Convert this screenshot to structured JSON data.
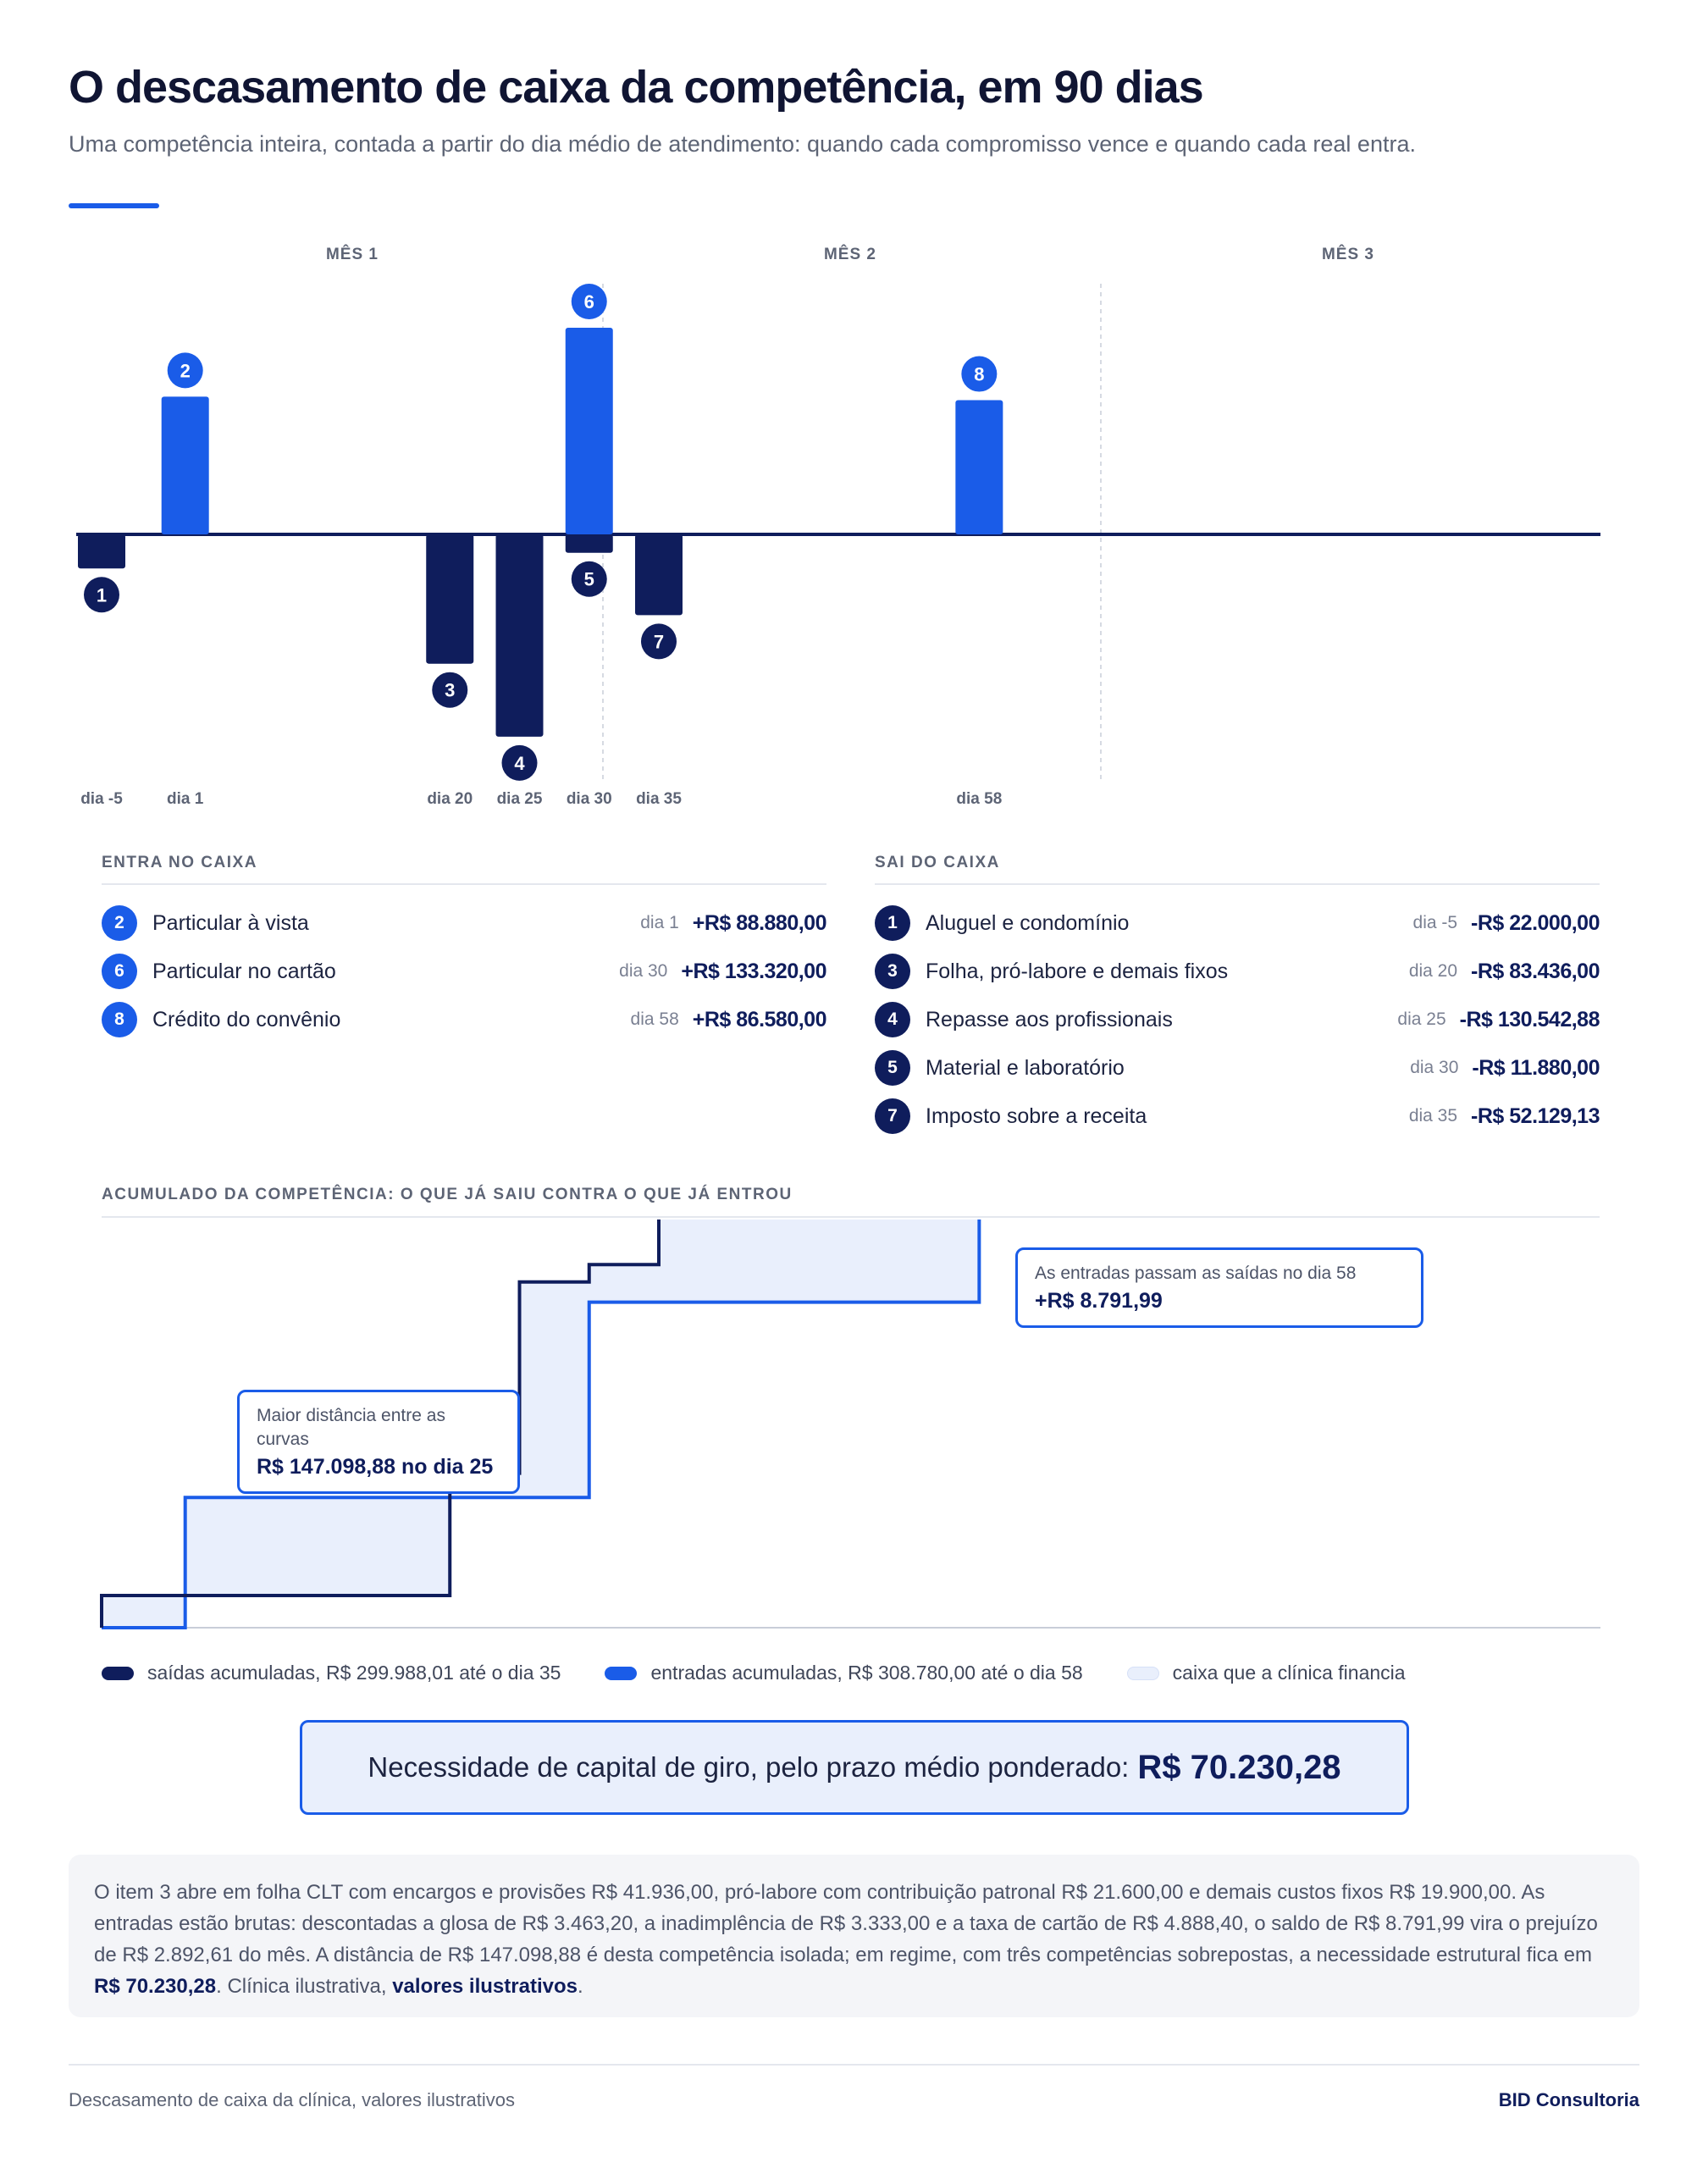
{
  "header": {
    "title": "O descasamento de caixa da competência, em 90 dias",
    "subtitle": "Uma competência inteira, contada a partir do dia médio de atendimento: quando cada compromisso vence e quando cada real entra."
  },
  "colors": {
    "inflow": "#1a5ce8",
    "outflow": "#0f1d5c",
    "financed": "#e9effc",
    "axis": "#0f1d5c"
  },
  "chart_data": [
    {
      "type": "bar",
      "months": [
        "MÊS 1",
        "MÊS 2",
        "MÊS 3"
      ],
      "events": [
        {
          "n": "1",
          "kind": "out",
          "day": -5,
          "value": -22000.0,
          "day_label": "dia -5"
        },
        {
          "n": "2",
          "kind": "in",
          "day": 1,
          "value": 88880.0,
          "day_label": "dia 1"
        },
        {
          "n": "3",
          "kind": "out",
          "day": 20,
          "value": -83436.0,
          "day_label": "dia 20"
        },
        {
          "n": "4",
          "kind": "out",
          "day": 25,
          "value": -130542.88,
          "day_label": "dia 25"
        },
        {
          "n": "5",
          "kind": "out",
          "day": 30,
          "value": -11880.0,
          "day_label": ""
        },
        {
          "n": "6",
          "kind": "in",
          "day": 30,
          "value": 133320.0,
          "day_label": "dia 30"
        },
        {
          "n": "7",
          "kind": "out",
          "day": 35,
          "value": -52129.13,
          "day_label": "dia 35"
        },
        {
          "n": "8",
          "kind": "in",
          "day": 58,
          "value": 86580.0,
          "day_label": "dia 58"
        }
      ]
    },
    {
      "type": "line",
      "title": "ACUMULADO DA COMPETÊNCIA: O QUE JÁ SAIU CONTRA O QUE JÁ ENTROU",
      "series": [
        {
          "name": "saídas acumuladas, R$ 299.988,01 até o dia 35",
          "steps": [
            [
              -5,
              22000.0
            ],
            [
              20,
              105436.0
            ],
            [
              25,
              235978.88
            ],
            [
              30,
              247858.88
            ],
            [
              35,
              299988.01
            ]
          ]
        },
        {
          "name": "entradas acumuladas, R$ 308.780,00 até o dia 58",
          "steps": [
            [
              1,
              88880.0
            ],
            [
              30,
              222200.0
            ],
            [
              58,
              308780.0
            ]
          ]
        }
      ],
      "area_label": "caixa que a clínica financia",
      "callouts": [
        {
          "label": "Maior distância entre as curvas",
          "value": "R$ 147.098,88 no dia 25"
        },
        {
          "label": "As entradas passam as saídas no dia 58",
          "value": "+R$ 8.791,99"
        }
      ]
    }
  ],
  "entradas": {
    "heading": "ENTRA NO CAIXA",
    "items": [
      {
        "n": "2",
        "label": "Particular à vista",
        "day": "dia 1",
        "value": "+R$ 88.880,00"
      },
      {
        "n": "6",
        "label": "Particular no cartão",
        "day": "dia 30",
        "value": "+R$ 133.320,00"
      },
      {
        "n": "8",
        "label": "Crédito do convênio",
        "day": "dia 58",
        "value": "+R$ 86.580,00"
      }
    ]
  },
  "saidas": {
    "heading": "SAI DO CAIXA",
    "items": [
      {
        "n": "1",
        "label": "Aluguel e condomínio",
        "day": "dia -5",
        "value": "-R$ 22.000,00"
      },
      {
        "n": "3",
        "label": "Folha, pró-labore e demais fixos",
        "day": "dia 20",
        "value": "-R$ 83.436,00"
      },
      {
        "n": "4",
        "label": "Repasse aos profissionais",
        "day": "dia 25",
        "value": "-R$ 130.542,88"
      },
      {
        "n": "5",
        "label": "Material e laboratório",
        "day": "dia 30",
        "value": "-R$ 11.880,00"
      },
      {
        "n": "7",
        "label": "Imposto sobre a receita",
        "day": "dia 35",
        "value": "-R$ 52.129,13"
      }
    ]
  },
  "summary": {
    "label": "Necessidade de capital de giro, pelo prazo médio ponderado:",
    "value": "R$ 70.230,28"
  },
  "note": {
    "p1": "O item 3 abre em folha CLT com encargos e provisões R$ 41.936,00, pró-labore com contribuição patronal R$ 21.600,00 e demais custos fixos R$ 19.900,00. As entradas estão brutas: descontadas a glosa de R$ 3.463,20, a inadimplência de R$ 3.333,00 e a taxa de cartão de R$ 4.888,40, o saldo de R$ 8.791,99 vira o prejuízo de R$ 2.892,61 do mês. A distância de R$ 147.098,88 é desta competência isolada; em regime, com três competências sobrepostas, a necessidade estrutural fica em ",
    "b1": "R$ 70.230,28",
    "p2": ". Clínica ilustrativa, ",
    "b2": "valores ilustrativos",
    "p3": "."
  },
  "footer": {
    "left": "Descasamento de caixa da clínica, valores ilustrativos",
    "right": "BID Consultoria"
  }
}
